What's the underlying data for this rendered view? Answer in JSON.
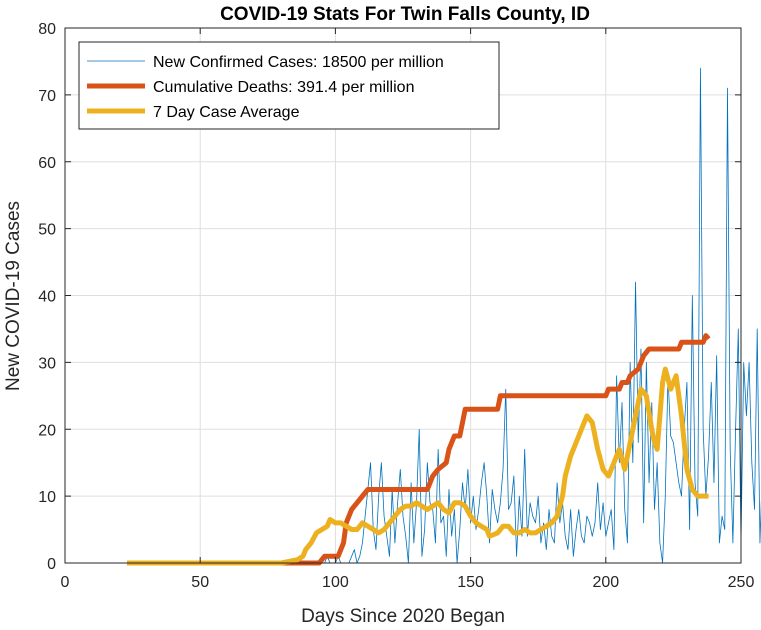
{
  "chart_data": {
    "type": "line",
    "title": "COVID-19 Stats For Twin Falls County, ID",
    "xlabel": "Days Since 2020 Began",
    "ylabel": "New COVID-19 Cases",
    "xlim": [
      0,
      250
    ],
    "ylim": [
      0,
      80
    ],
    "xticks": [
      0,
      50,
      100,
      150,
      200,
      250
    ],
    "yticks": [
      0,
      10,
      20,
      30,
      40,
      50,
      60,
      70,
      80
    ],
    "grid": true,
    "legend_position": "top-left",
    "series": [
      {
        "name": "New Confirmed Cases: 18500 per million",
        "color": "#0072BD",
        "linewidth": 0.8,
        "x_start": 23,
        "values": [
          0,
          0,
          0,
          0,
          0,
          0,
          0,
          0,
          0,
          0,
          0,
          0,
          0,
          0,
          0,
          0,
          0,
          0,
          0,
          0,
          0,
          0,
          0,
          0,
          0,
          0,
          0,
          0,
          0,
          0,
          0,
          0,
          0,
          0,
          0,
          0,
          0,
          0,
          0,
          0,
          0,
          0,
          0,
          0,
          0,
          0,
          0,
          0,
          0,
          0,
          0,
          0,
          0,
          0,
          0,
          0,
          0,
          0,
          0,
          0,
          0,
          0,
          0,
          0,
          0,
          0,
          0,
          0,
          0,
          0,
          0,
          0,
          0,
          0,
          1,
          0,
          0,
          0,
          1,
          0,
          0,
          0,
          0,
          1,
          2,
          0,
          1,
          3,
          7,
          11,
          15,
          5,
          2,
          10,
          15,
          7,
          4,
          1,
          11,
          3,
          9,
          14,
          7,
          4,
          0,
          12,
          3,
          9,
          20,
          1,
          5,
          15,
          9,
          8,
          3,
          17,
          6,
          7,
          1,
          11,
          4,
          8,
          0,
          5,
          12,
          8,
          14,
          6,
          10,
          5,
          8,
          12,
          15,
          10,
          3,
          11,
          8,
          6,
          9,
          14,
          26,
          8,
          9,
          13,
          1,
          10,
          4,
          17,
          4,
          9,
          7,
          6,
          10,
          3,
          6,
          2,
          8,
          4,
          3,
          12,
          6,
          9,
          4,
          2,
          8,
          1,
          5,
          8,
          4,
          3,
          7,
          6,
          4,
          6,
          12,
          5,
          9,
          4,
          6,
          8,
          2,
          28,
          15,
          24,
          8,
          3,
          30,
          15,
          42,
          18,
          32,
          6,
          30,
          12,
          24,
          8,
          15,
          3,
          0,
          10,
          28,
          19,
          18,
          15,
          12,
          10,
          20,
          27,
          5,
          40,
          12,
          7,
          74,
          20,
          10,
          16,
          27,
          12,
          31,
          3,
          7,
          5,
          71,
          17,
          3,
          20,
          35,
          3,
          30,
          22,
          30,
          15,
          8,
          35,
          3,
          15,
          6
        ]
      },
      {
        "name": "Cumulative Deaths: 391.4 per million",
        "color": "#D95319",
        "linewidth": 5,
        "points": [
          [
            23,
            0
          ],
          [
            94,
            0
          ],
          [
            96,
            1
          ],
          [
            101,
            1
          ],
          [
            103,
            3
          ],
          [
            104,
            6
          ],
          [
            106,
            8
          ],
          [
            108,
            9
          ],
          [
            110,
            10
          ],
          [
            112,
            11
          ],
          [
            134,
            11
          ],
          [
            136,
            13
          ],
          [
            138,
            14
          ],
          [
            141,
            15
          ],
          [
            142,
            17
          ],
          [
            144,
            19
          ],
          [
            146,
            19
          ],
          [
            147,
            21
          ],
          [
            148,
            23
          ],
          [
            160,
            23
          ],
          [
            161,
            25
          ],
          [
            200,
            25
          ],
          [
            201,
            26
          ],
          [
            205,
            26
          ],
          [
            206,
            27
          ],
          [
            208,
            27
          ],
          [
            209,
            28
          ],
          [
            212,
            29
          ],
          [
            214,
            31
          ],
          [
            216,
            32
          ],
          [
            227,
            32
          ],
          [
            228,
            33
          ],
          [
            236,
            33
          ],
          [
            237,
            34
          ],
          [
            238,
            33.5
          ]
        ]
      },
      {
        "name": "7 Day Case Average",
        "color": "#EDB120",
        "linewidth": 5,
        "points": [
          [
            23,
            0
          ],
          [
            80,
            0
          ],
          [
            86,
            0.5
          ],
          [
            88,
            1
          ],
          [
            89,
            2
          ],
          [
            91,
            3
          ],
          [
            93,
            4.5
          ],
          [
            95,
            5
          ],
          [
            97,
            5.5
          ],
          [
            98,
            6.5
          ],
          [
            100,
            6
          ],
          [
            102,
            6
          ],
          [
            104,
            5.5
          ],
          [
            106,
            5
          ],
          [
            108,
            5
          ],
          [
            110,
            6
          ],
          [
            112,
            5.5
          ],
          [
            114,
            5
          ],
          [
            116,
            4.5
          ],
          [
            118,
            5
          ],
          [
            120,
            6
          ],
          [
            122,
            7
          ],
          [
            124,
            8
          ],
          [
            126,
            8.5
          ],
          [
            128,
            8.5
          ],
          [
            130,
            9
          ],
          [
            132,
            8.5
          ],
          [
            134,
            8
          ],
          [
            136,
            8.5
          ],
          [
            138,
            9
          ],
          [
            140,
            8
          ],
          [
            142,
            7.5
          ],
          [
            144,
            9
          ],
          [
            146,
            9
          ],
          [
            148,
            8.5
          ],
          [
            150,
            7
          ],
          [
            152,
            6
          ],
          [
            154,
            5.5
          ],
          [
            156,
            5
          ],
          [
            157,
            4
          ],
          [
            160,
            4.5
          ],
          [
            162,
            5.5
          ],
          [
            164,
            5.5
          ],
          [
            166,
            4.5
          ],
          [
            168,
            4.5
          ],
          [
            170,
            5
          ],
          [
            172,
            4.5
          ],
          [
            174,
            4.5
          ],
          [
            176,
            5
          ],
          [
            178,
            5.5
          ],
          [
            180,
            6
          ],
          [
            182,
            7
          ],
          [
            184,
            10
          ],
          [
            185,
            13
          ],
          [
            187,
            16
          ],
          [
            189,
            18
          ],
          [
            191,
            20
          ],
          [
            193,
            22
          ],
          [
            195,
            21
          ],
          [
            197,
            17
          ],
          [
            199,
            14
          ],
          [
            201,
            13
          ],
          [
            203,
            15
          ],
          [
            205,
            17
          ],
          [
            207,
            14
          ],
          [
            209,
            18
          ],
          [
            211,
            22
          ],
          [
            213,
            26
          ],
          [
            215,
            25
          ],
          [
            217,
            20
          ],
          [
            218,
            18
          ],
          [
            219,
            17
          ],
          [
            220,
            22
          ],
          [
            221,
            27
          ],
          [
            222,
            29
          ],
          [
            224,
            26
          ],
          [
            226,
            28
          ],
          [
            228,
            22
          ],
          [
            230,
            14
          ],
          [
            232,
            11
          ],
          [
            234,
            10
          ],
          [
            236,
            10
          ],
          [
            238,
            10
          ]
        ]
      }
    ]
  }
}
